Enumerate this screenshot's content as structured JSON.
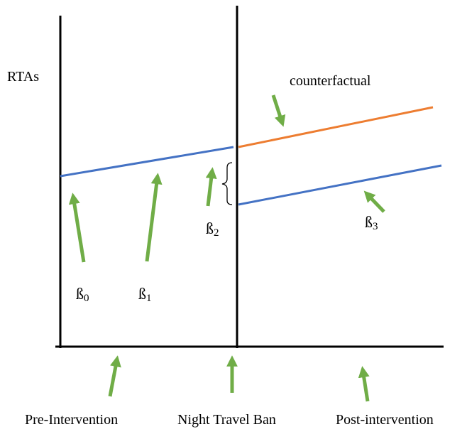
{
  "y_axis_label": "RTAs",
  "counterfactual_label": "counterfactual",
  "coefficients": {
    "b0": {
      "symbol": "ß",
      "subscript": "0"
    },
    "b1": {
      "symbol": "ß",
      "subscript": "1"
    },
    "b2": {
      "symbol": "ß",
      "subscript": "2"
    },
    "b3": {
      "symbol": "ß",
      "subscript": "3"
    }
  },
  "x_labels": {
    "pre": "Pre-Intervention",
    "intervention": "Night Travel Ban",
    "post": "Post-intervention"
  },
  "colors": {
    "axis": "#000000",
    "trend": "#4472c4",
    "counterfactual": "#ed7d31",
    "arrow": "#70ad47"
  }
}
